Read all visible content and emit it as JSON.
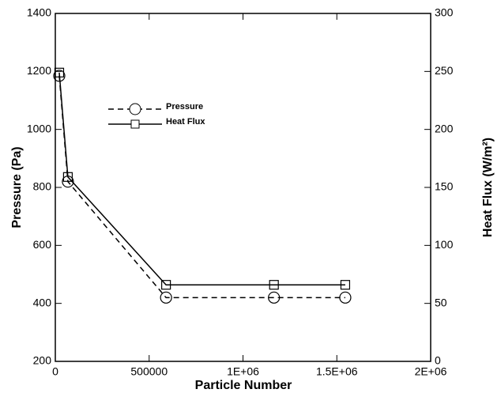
{
  "chart_data": {
    "type": "line",
    "x_label": "Particle Number",
    "y_label": "Pressure (Pa)",
    "y2_label": "Heat Flux (W/m²)",
    "x": [
      21000,
      67000,
      590000,
      1165000,
      1545000
    ],
    "xlim": [
      0,
      2000000
    ],
    "xticks": [
      0,
      500000,
      {
        "value": 1000000,
        "label": "1E+06"
      },
      {
        "value": 1500000,
        "label": "1.5E+06"
      },
      {
        "value": 2000000,
        "label": "2E+06"
      }
    ],
    "ylim": [
      200,
      1400
    ],
    "yticks": [
      200,
      400,
      600,
      800,
      1000,
      1200,
      1400
    ],
    "y2lim": [
      0,
      300
    ],
    "y2ticks": [
      0,
      50,
      100,
      150,
      200,
      250,
      300
    ],
    "series": [
      {
        "name": "Pressure",
        "color": "#000000",
        "dash": "dashed",
        "marker": "circle",
        "axis": "y",
        "values": [
          1185,
          820,
          420,
          420,
          420
        ]
      },
      {
        "name": "Heat Flux",
        "color": "#000000",
        "dash": "solid",
        "marker": "square",
        "axis": "y2",
        "values": [
          249,
          159,
          66,
          66,
          66
        ]
      }
    ]
  }
}
